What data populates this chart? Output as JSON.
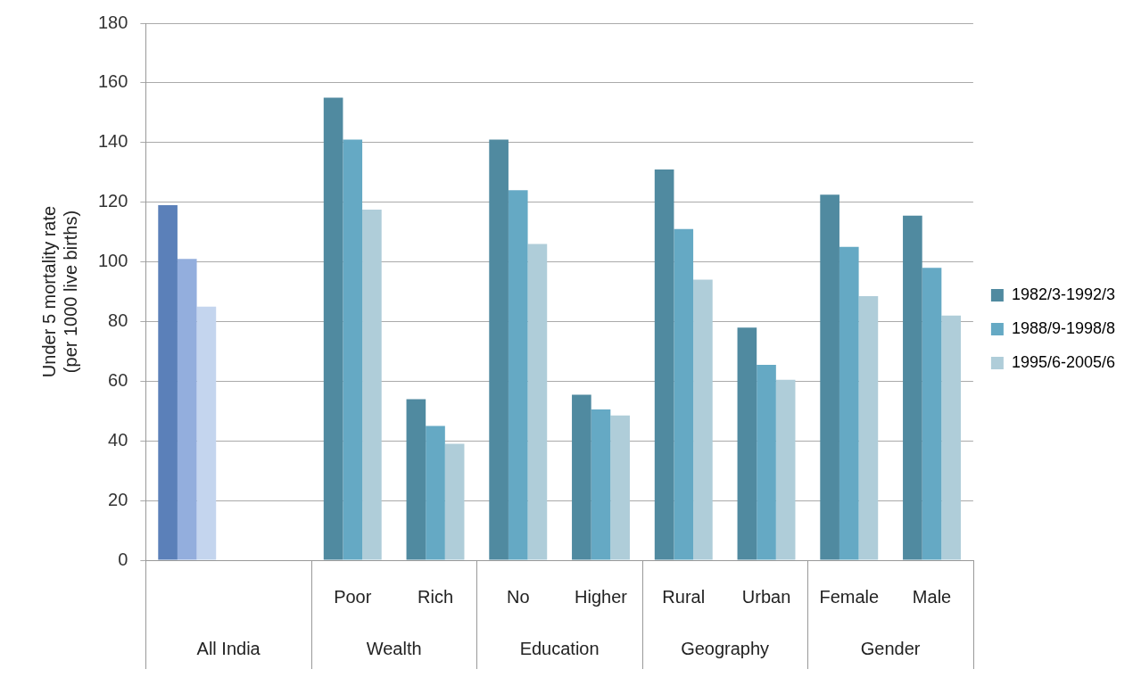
{
  "chart_data": {
    "type": "bar",
    "ylabel": "Under 5 mortality rate\n(per 1000 live births)",
    "categories": [
      null,
      null,
      "Poor",
      "Rich",
      "No",
      "Higher",
      "Rural",
      "Urban",
      "Female",
      "Male"
    ],
    "series": [
      {
        "name": "1982/3-1992/3",
        "color": "#508aa0",
        "colors": [
          "#5b80b9",
          "#5b80b9",
          "#508aa0",
          "#508aa0",
          "#508aa0",
          "#508aa0",
          "#508aa0",
          "#508aa0",
          "#508aa0",
          "#508aa0"
        ],
        "values": [
          119,
          null,
          155,
          54,
          141,
          55.5,
          131,
          78,
          122.5,
          115.5
        ]
      },
      {
        "name": "1988/9-1998/8",
        "color": "#65a9c4",
        "colors": [
          "#93aedd",
          "#93aedd",
          "#65a9c4",
          "#65a9c4",
          "#65a9c4",
          "#65a9c4",
          "#65a9c4",
          "#65a9c4",
          "#65a9c4",
          "#65a9c4"
        ],
        "values": [
          101,
          null,
          141,
          45,
          124,
          50.5,
          111,
          65.5,
          105,
          98
        ]
      },
      {
        "name": "1995/6-2005/6",
        "color": "#afcdd9",
        "colors": [
          "#c4d5ee",
          "#c4d5ee",
          "#afcdd9",
          "#afcdd9",
          "#afcdd9",
          "#afcdd9",
          "#afcdd9",
          "#afcdd9",
          "#afcdd9",
          "#afcdd9"
        ],
        "values": [
          85,
          null,
          117.5,
          39,
          106,
          48.5,
          94,
          60.5,
          88.5,
          82
        ]
      }
    ],
    "ylim": [
      0,
      180
    ],
    "yticks": [
      0,
      20,
      40,
      60,
      80,
      100,
      120,
      140,
      160,
      180
    ],
    "grid": "y",
    "legend": "right",
    "annotations": [
      "All India",
      "Wealth",
      "Education",
      "Geography",
      "Gender"
    ]
  }
}
